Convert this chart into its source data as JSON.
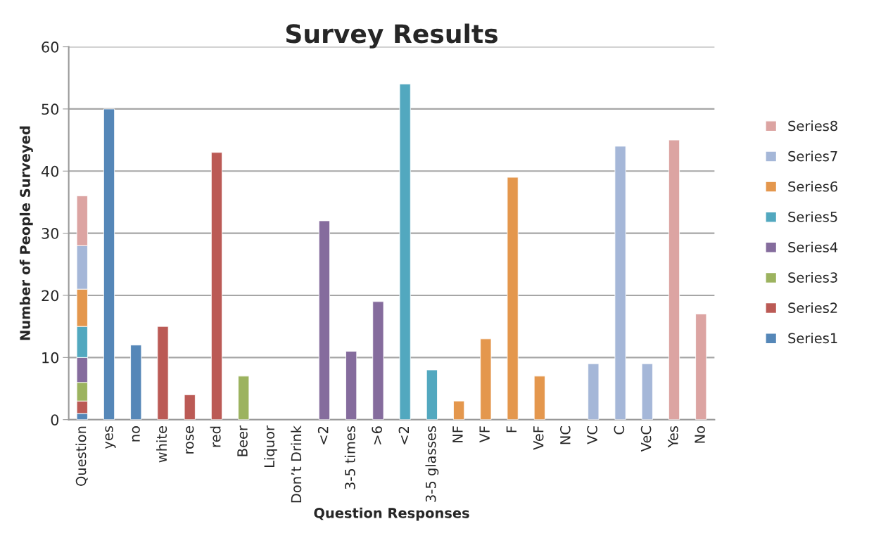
{
  "chart_data": {
    "type": "bar",
    "title": "Survey Results",
    "xlabel": "Question Responses",
    "ylabel": "Number of People Surveyed",
    "categories": [
      "Question",
      "yes",
      "no",
      "white",
      "rose",
      "red",
      "Beer",
      "Liquor",
      "Don’t Drink",
      "<2",
      "3-5 times",
      ">6",
      "<2",
      "3-5 glasses",
      "NF",
      "VF",
      "F",
      "VeF",
      "NC",
      "VC",
      "C",
      "VeC",
      "Yes",
      "No"
    ],
    "stacked": true,
    "ylim": [
      0,
      60
    ],
    "yticks": [
      0,
      10,
      20,
      30,
      40,
      50,
      60
    ],
    "grid": "y",
    "legend": "right",
    "series": [
      {
        "name": "Series1",
        "color": "#5587b8",
        "values": [
          1,
          50,
          12,
          null,
          null,
          null,
          null,
          null,
          null,
          null,
          null,
          null,
          null,
          null,
          null,
          null,
          null,
          null,
          null,
          null,
          null,
          null,
          null,
          null
        ]
      },
      {
        "name": "Series2",
        "color": "#bb5a55",
        "values": [
          2,
          null,
          null,
          15,
          4,
          43,
          null,
          null,
          null,
          null,
          null,
          null,
          null,
          null,
          null,
          null,
          null,
          null,
          null,
          null,
          null,
          null,
          null,
          null
        ]
      },
      {
        "name": "Series3",
        "color": "#9cb35f",
        "values": [
          3,
          null,
          null,
          null,
          null,
          null,
          7,
          null,
          null,
          null,
          null,
          null,
          null,
          null,
          null,
          null,
          null,
          null,
          null,
          null,
          null,
          null,
          null,
          null
        ]
      },
      {
        "name": "Series4",
        "color": "#856c9d",
        "values": [
          4,
          null,
          null,
          null,
          null,
          null,
          null,
          null,
          null,
          32,
          11,
          19,
          null,
          null,
          null,
          null,
          null,
          null,
          null,
          null,
          null,
          null,
          null,
          null
        ]
      },
      {
        "name": "Series5",
        "color": "#52a8bf",
        "values": [
          5,
          null,
          null,
          null,
          null,
          null,
          null,
          null,
          null,
          null,
          null,
          null,
          54,
          8,
          null,
          null,
          null,
          null,
          null,
          null,
          null,
          null,
          null,
          null
        ]
      },
      {
        "name": "Series6",
        "color": "#e4974d",
        "values": [
          6,
          null,
          null,
          null,
          null,
          null,
          null,
          null,
          null,
          null,
          null,
          null,
          null,
          null,
          3,
          13,
          39,
          7,
          null,
          null,
          null,
          null,
          null,
          null
        ]
      },
      {
        "name": "Series7",
        "color": "#a5b7d8",
        "values": [
          7,
          null,
          null,
          null,
          null,
          null,
          null,
          null,
          null,
          null,
          null,
          null,
          null,
          null,
          null,
          null,
          null,
          null,
          null,
          9,
          44,
          9,
          null,
          null
        ]
      },
      {
        "name": "Series8",
        "color": "#dca4a2",
        "values": [
          8,
          null,
          null,
          null,
          null,
          null,
          null,
          null,
          null,
          null,
          null,
          null,
          null,
          null,
          null,
          null,
          null,
          null,
          null,
          null,
          null,
          null,
          45,
          17
        ]
      }
    ]
  }
}
